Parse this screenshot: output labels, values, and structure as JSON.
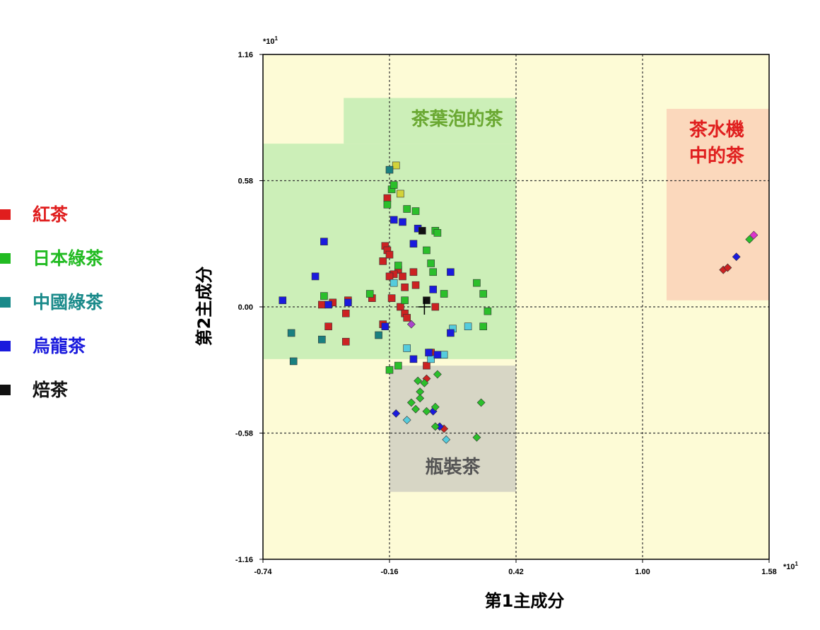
{
  "legend": [
    {
      "label": "紅茶",
      "color": "#e01e1e"
    },
    {
      "label": "日本綠茶",
      "color": "#22bb22"
    },
    {
      "label": "中國綠茶",
      "color": "#1a8a8a"
    },
    {
      "label": "烏龍茶",
      "color": "#1a1add"
    },
    {
      "label": "焙茶",
      "color": "#111111"
    }
  ],
  "chart_data": {
    "type": "scatter",
    "xlabel": "第1主成分",
    "ylabel": "第2主成分",
    "x_multiplier": "*10",
    "x_multiplier_exp": "1",
    "y_multiplier": "*10",
    "y_multiplier_exp": "1",
    "xlim": [
      -0.74,
      1.58
    ],
    "ylim": [
      -1.16,
      1.16
    ],
    "x_ticks": [
      "-0.74",
      "-0.16",
      "0.42",
      "1.00",
      "1.58"
    ],
    "y_ticks": [
      "1.16",
      "0.58",
      "0.00",
      "-0.58",
      "-1.16"
    ],
    "grid": "dashed",
    "regions": [
      {
        "label": "茶葉泡的茶",
        "fill": "#ccefb8",
        "x": [
          -0.74,
          0.42
        ],
        "y": [
          -0.24,
          0.75
        ],
        "label_color": "#6aa832"
      },
      {
        "label": "茶葉泡的茶",
        "fill": "#ccefb8",
        "x": [
          -0.37,
          0.42
        ],
        "y": [
          0.75,
          0.96
        ],
        "label_color": "#6aa832"
      },
      {
        "label": "瓶裝茶",
        "fill": "#d7d6c5",
        "x": [
          -0.16,
          0.42
        ],
        "y": [
          -0.85,
          -0.27
        ],
        "label_color": "#555555"
      },
      {
        "label": "茶水機\n中的茶",
        "fill": "#fbd8bc",
        "x": [
          1.11,
          1.58
        ],
        "y": [
          0.03,
          0.91
        ],
        "label_color": "#e01e1e"
      }
    ],
    "region_labels": [
      {
        "text": "茶葉泡的茶",
        "color": "#6aa832",
        "x": 0.15,
        "y": 0.86
      },
      {
        "text": "瓶裝茶",
        "color": "#555555",
        "x": 0.13,
        "y": -0.74
      },
      {
        "text": "茶水機",
        "color": "#e01e1e",
        "x": 1.34,
        "y": 0.81
      },
      {
        "text": "中的茶",
        "color": "#e01e1e",
        "x": 1.34,
        "y": 0.69
      }
    ],
    "centroid": {
      "x": 0.0,
      "y": 0.0
    },
    "series": [
      {
        "shape": "square",
        "points": [
          {
            "x": -0.17,
            "y": 0.5,
            "color": "#cc2222"
          },
          {
            "x": -0.18,
            "y": 0.28,
            "color": "#cc2222"
          },
          {
            "x": -0.17,
            "y": 0.26,
            "color": "#cc2222"
          },
          {
            "x": -0.19,
            "y": 0.21,
            "color": "#cc2222"
          },
          {
            "x": -0.16,
            "y": 0.24,
            "color": "#cc2222"
          },
          {
            "x": -0.12,
            "y": 0.17,
            "color": "#cc2222"
          },
          {
            "x": -0.14,
            "y": 0.15,
            "color": "#cc2222"
          },
          {
            "x": -0.1,
            "y": 0.14,
            "color": "#cc2222"
          },
          {
            "x": -0.16,
            "y": 0.14,
            "color": "#cc2222"
          },
          {
            "x": -0.05,
            "y": 0.16,
            "color": "#cc2222"
          },
          {
            "x": -0.04,
            "y": 0.1,
            "color": "#cc2222"
          },
          {
            "x": -0.09,
            "y": 0.09,
            "color": "#cc2222"
          },
          {
            "x": -0.15,
            "y": 0.04,
            "color": "#cc2222"
          },
          {
            "x": -0.11,
            "y": 0.0,
            "color": "#cc2222"
          },
          {
            "x": -0.09,
            "y": -0.03,
            "color": "#cc2222"
          },
          {
            "x": -0.08,
            "y": -0.05,
            "color": "#cc2222"
          },
          {
            "x": -0.19,
            "y": -0.08,
            "color": "#cc2222"
          },
          {
            "x": -0.24,
            "y": 0.04,
            "color": "#cc2222"
          },
          {
            "x": -0.35,
            "y": 0.03,
            "color": "#cc2222"
          },
          {
            "x": -0.36,
            "y": -0.03,
            "color": "#cc2222"
          },
          {
            "x": -0.42,
            "y": 0.02,
            "color": "#cc2222"
          },
          {
            "x": -0.47,
            "y": 0.01,
            "color": "#cc2222"
          },
          {
            "x": -0.44,
            "y": -0.09,
            "color": "#cc2222"
          },
          {
            "x": -0.36,
            "y": -0.16,
            "color": "#cc2222"
          },
          {
            "x": 0.03,
            "y": -0.21,
            "color": "#cc2222"
          },
          {
            "x": 0.01,
            "y": -0.27,
            "color": "#cc2222"
          },
          {
            "x": 0.05,
            "y": 0.0,
            "color": "#cc2222"
          },
          {
            "x": -0.17,
            "y": 0.47,
            "color": "#2bbf2b"
          },
          {
            "x": -0.15,
            "y": 0.54,
            "color": "#2bbf2b"
          },
          {
            "x": -0.14,
            "y": 0.56,
            "color": "#2bbf2b"
          },
          {
            "x": -0.13,
            "y": 0.65,
            "color": "#d2d23a"
          },
          {
            "x": -0.11,
            "y": 0.52,
            "color": "#d2d23a"
          },
          {
            "x": -0.08,
            "y": 0.45,
            "color": "#2bbf2b"
          },
          {
            "x": -0.04,
            "y": 0.44,
            "color": "#2bbf2b"
          },
          {
            "x": 0.05,
            "y": 0.35,
            "color": "#2bbf2b"
          },
          {
            "x": 0.06,
            "y": 0.34,
            "color": "#2bbf2b"
          },
          {
            "x": 0.01,
            "y": 0.26,
            "color": "#2bbf2b"
          },
          {
            "x": 0.03,
            "y": 0.2,
            "color": "#2bbf2b"
          },
          {
            "x": -0.12,
            "y": 0.19,
            "color": "#2bbf2b"
          },
          {
            "x": 0.04,
            "y": 0.16,
            "color": "#2bbf2b"
          },
          {
            "x": -0.25,
            "y": 0.06,
            "color": "#2bbf2b"
          },
          {
            "x": -0.46,
            "y": 0.05,
            "color": "#2bbf2b"
          },
          {
            "x": -0.09,
            "y": 0.03,
            "color": "#2bbf2b"
          },
          {
            "x": 0.09,
            "y": 0.06,
            "color": "#2bbf2b"
          },
          {
            "x": 0.24,
            "y": 0.11,
            "color": "#2bbf2b"
          },
          {
            "x": 0.27,
            "y": 0.06,
            "color": "#2bbf2b"
          },
          {
            "x": 0.29,
            "y": -0.02,
            "color": "#2bbf2b"
          },
          {
            "x": 0.27,
            "y": -0.09,
            "color": "#2bbf2b"
          },
          {
            "x": -0.12,
            "y": -0.27,
            "color": "#2bbf2b"
          },
          {
            "x": -0.16,
            "y": -0.29,
            "color": "#2bbf2b"
          },
          {
            "x": -0.21,
            "y": -0.13,
            "color": "#1a8080"
          },
          {
            "x": -0.61,
            "y": -0.12,
            "color": "#1a8080"
          },
          {
            "x": -0.6,
            "y": -0.25,
            "color": "#1a8080"
          },
          {
            "x": -0.47,
            "y": -0.15,
            "color": "#1a8080"
          },
          {
            "x": -0.16,
            "y": 0.63,
            "color": "#1a8080"
          },
          {
            "x": -0.14,
            "y": 0.11,
            "color": "#55ccdd"
          },
          {
            "x": -0.08,
            "y": -0.19,
            "color": "#55ccdd"
          },
          {
            "x": 0.03,
            "y": -0.24,
            "color": "#55ccdd"
          },
          {
            "x": 0.09,
            "y": -0.22,
            "color": "#55ccdd"
          },
          {
            "x": 0.13,
            "y": -0.1,
            "color": "#55ccdd"
          },
          {
            "x": 0.2,
            "y": -0.09,
            "color": "#55ccdd"
          },
          {
            "x": -0.46,
            "y": 0.3,
            "color": "#1a1add"
          },
          {
            "x": -0.5,
            "y": 0.14,
            "color": "#1a1add"
          },
          {
            "x": -0.65,
            "y": 0.03,
            "color": "#1a1add"
          },
          {
            "x": -0.44,
            "y": 0.01,
            "color": "#1a1add"
          },
          {
            "x": -0.35,
            "y": 0.02,
            "color": "#1a1add"
          },
          {
            "x": -0.14,
            "y": 0.4,
            "color": "#1a1add"
          },
          {
            "x": -0.1,
            "y": 0.39,
            "color": "#1a1add"
          },
          {
            "x": -0.05,
            "y": 0.29,
            "color": "#1a1add"
          },
          {
            "x": -0.03,
            "y": 0.36,
            "color": "#1a1add"
          },
          {
            "x": 0.12,
            "y": 0.16,
            "color": "#1a1add"
          },
          {
            "x": 0.04,
            "y": 0.08,
            "color": "#1a1add"
          },
          {
            "x": -0.18,
            "y": -0.09,
            "color": "#1a1add"
          },
          {
            "x": -0.05,
            "y": -0.24,
            "color": "#1a1add"
          },
          {
            "x": 0.02,
            "y": -0.21,
            "color": "#1a1add"
          },
          {
            "x": 0.06,
            "y": -0.22,
            "color": "#1a1add"
          },
          {
            "x": 0.12,
            "y": -0.12,
            "color": "#1a1add"
          },
          {
            "x": -0.01,
            "y": 0.35,
            "color": "#111111"
          },
          {
            "x": 0.01,
            "y": 0.03,
            "color": "#111111"
          }
        ]
      },
      {
        "shape": "diamond",
        "points": [
          {
            "x": -0.06,
            "y": -0.08,
            "color": "#aa44cc"
          },
          {
            "x": 0.01,
            "y": -0.33,
            "color": "#cc2222"
          },
          {
            "x": 0.09,
            "y": -0.56,
            "color": "#cc2222"
          },
          {
            "x": 0.07,
            "y": -0.55,
            "color": "#1a1add"
          },
          {
            "x": -0.13,
            "y": -0.49,
            "color": "#1a1add"
          },
          {
            "x": 0.04,
            "y": -0.48,
            "color": "#1a1add"
          },
          {
            "x": -0.03,
            "y": -0.34,
            "color": "#2bbf2b"
          },
          {
            "x": -0.02,
            "y": -0.39,
            "color": "#2bbf2b"
          },
          {
            "x": -0.02,
            "y": -0.42,
            "color": "#2bbf2b"
          },
          {
            "x": 0.0,
            "y": -0.35,
            "color": "#2bbf2b"
          },
          {
            "x": 0.06,
            "y": -0.31,
            "color": "#2bbf2b"
          },
          {
            "x": -0.06,
            "y": -0.44,
            "color": "#2bbf2b"
          },
          {
            "x": -0.04,
            "y": -0.47,
            "color": "#2bbf2b"
          },
          {
            "x": 0.01,
            "y": -0.48,
            "color": "#2bbf2b"
          },
          {
            "x": 0.05,
            "y": -0.46,
            "color": "#2bbf2b"
          },
          {
            "x": 0.24,
            "y": -0.6,
            "color": "#2bbf2b"
          },
          {
            "x": 0.26,
            "y": -0.44,
            "color": "#2bbf2b"
          },
          {
            "x": 0.05,
            "y": -0.55,
            "color": "#2bbf2b"
          },
          {
            "x": -0.08,
            "y": -0.52,
            "color": "#55ccdd"
          },
          {
            "x": 0.1,
            "y": -0.61,
            "color": "#55ccdd"
          },
          {
            "x": 1.37,
            "y": 0.17,
            "color": "#cc2222"
          },
          {
            "x": 1.39,
            "y": 0.18,
            "color": "#cc2222"
          },
          {
            "x": 1.43,
            "y": 0.23,
            "color": "#1a1add"
          },
          {
            "x": 1.49,
            "y": 0.31,
            "color": "#2bbf2b"
          },
          {
            "x": 1.51,
            "y": 0.33,
            "color": "#dd33cc"
          }
        ]
      }
    ]
  }
}
